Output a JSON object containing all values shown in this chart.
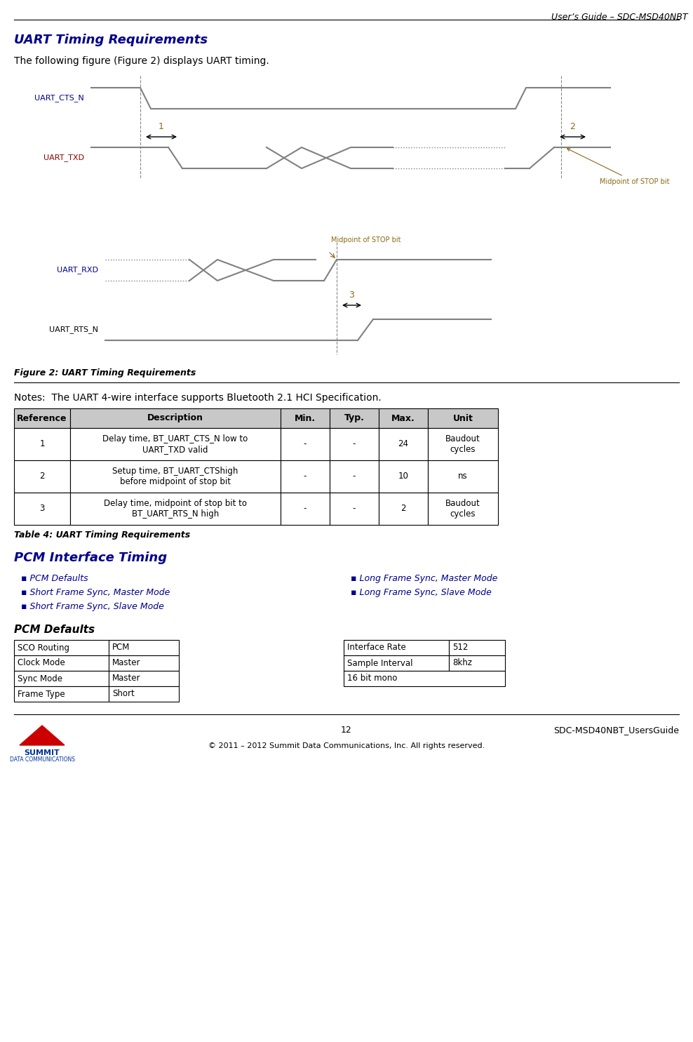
{
  "header_text": "User’s Guide – SDC-MSD40NBT",
  "title": "UART Timing Requirements",
  "intro_text": "The following figure (Figure 2) displays UART timing.",
  "figure_caption": "Figure 2: UART Timing Requirements",
  "notes_text": "Notes:  The UART 4-wire interface supports Bluetooth 2.1 HCI Specification.",
  "table_caption": "Table 4: UART Timing Requirements",
  "table_headers": [
    "Reference",
    "Description",
    "Min.",
    "Typ.",
    "Max.",
    "Unit"
  ],
  "table_rows": [
    [
      "1",
      "Delay time, BT_UART_CTS_N low to\nUART_TXD valid",
      "-",
      "-",
      "24",
      "Baudout\ncycles"
    ],
    [
      "2",
      "Setup time, BT_UART_CTShigh\nbefore midpoint of stop bit",
      "-",
      "-",
      "10",
      "ns"
    ],
    [
      "3",
      "Delay time, midpoint of stop bit to\nBT_UART_RTS_N high",
      "-",
      "-",
      "2",
      "Baudout\ncycles"
    ]
  ],
  "pcm_title": "PCM Interface Timing",
  "pcm_links_left": [
    "PCM Defaults",
    "Short Frame Sync, Master Mode",
    "Short Frame Sync, Slave Mode"
  ],
  "pcm_links_right": [
    "Long Frame Sync, Master Mode",
    "Long Frame Sync, Slave Mode"
  ],
  "pcm_defaults_title": "PCM Defaults",
  "pcm_table_left": [
    [
      "SCO Routing",
      "PCM"
    ],
    [
      "Clock Mode",
      "Master"
    ],
    [
      "Sync Mode",
      "Master"
    ],
    [
      "Frame Type",
      "Short"
    ]
  ],
  "pcm_table_right": [
    [
      "Interface Rate",
      "512"
    ],
    [
      "Sample Interval",
      "8khz"
    ],
    [
      "16 bit mono",
      ""
    ]
  ],
  "footer_page": "12",
  "footer_right": "SDC-MSD40NBT_UsersGuide",
  "footer_copy": "© 2011 – 2012 Summit Data Communications, Inc. All rights reserved.",
  "title_color": "#00008B",
  "link_color": "#00008B",
  "signal_color": "#808080",
  "label_color_cts": "#00008B",
  "label_color_txd": "#8B0000",
  "label_color_rxd": "#00008B",
  "label_color_rts": "#000000",
  "annotation_color": "#8B6914"
}
